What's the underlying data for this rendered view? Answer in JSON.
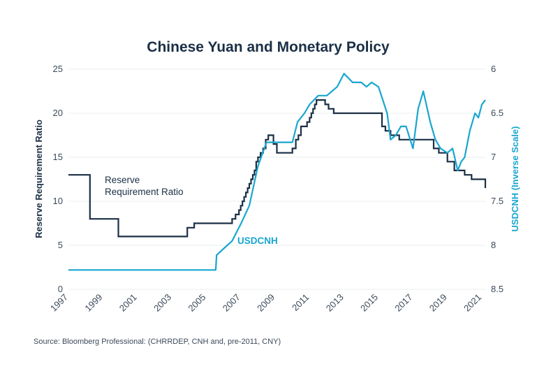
{
  "colors": {
    "rrr": "#1b2f45",
    "usdcnh": "#19a6cf",
    "grid": "#e9ecef",
    "text": "#3b4a5a"
  },
  "chart_data": {
    "type": "line",
    "title": "Chinese Yuan and Monetary Policy",
    "xlabel": "",
    "ylabel": "Reserve Requirement Ratio",
    "ylabel_right": "USDCNH (Inverse Scale)",
    "xlim": [
      1997,
      2021.2
    ],
    "ylim": [
      0,
      25
    ],
    "ylim_right": [
      8.5,
      6
    ],
    "right_axis_inverted": true,
    "grid": true,
    "x_ticks": [
      "1997",
      "1999",
      "2001",
      "2003",
      "2005",
      "2007",
      "2009",
      "2011",
      "2013",
      "2015",
      "2017",
      "2019",
      "2021"
    ],
    "y_ticks": [
      "0",
      "5",
      "10",
      "15",
      "20",
      "25"
    ],
    "y_ticks_right": [
      "6",
      "6.5",
      "7",
      "7.5",
      "8",
      "8.5"
    ],
    "annotations": {
      "rrr_line1": "Reserve",
      "rrr_line2": "Requirement Ratio",
      "usdcnh": "USDCNH"
    },
    "source": "Source: Bloomberg Professional: (CHRRDEP, CNH and, pre-2011, CNY)",
    "series": [
      {
        "name": "Reserve Requirement Ratio",
        "axis": "left",
        "step": true,
        "x": [
          1997.0,
          1998.25,
          1999.9,
          2003.9,
          2004.3,
          2006.5,
          2006.7,
          2006.9,
          2007.0,
          2007.1,
          2007.2,
          2007.3,
          2007.4,
          2007.5,
          2007.6,
          2007.7,
          2007.8,
          2007.9,
          2008.0,
          2008.15,
          2008.3,
          2008.45,
          2008.6,
          2008.75,
          2008.9,
          2009.1,
          2009.3,
          2010.0,
          2010.2,
          2010.35,
          2010.5,
          2010.85,
          2011.0,
          2011.1,
          2011.2,
          2011.3,
          2011.4,
          2011.5,
          2011.9,
          2012.1,
          2012.4,
          2015.2,
          2015.4,
          2015.7,
          2016.2,
          2018.2,
          2018.5,
          2019.0,
          2019.4,
          2020.0,
          2020.4,
          2021.2
        ],
        "y": [
          13,
          8,
          6,
          7,
          7.5,
          8,
          8.5,
          9,
          9.5,
          10,
          10.5,
          11,
          11.5,
          12,
          12.5,
          13,
          13.5,
          14.5,
          15,
          15.5,
          16,
          17,
          17.5,
          17.5,
          16.5,
          15.5,
          15.5,
          16,
          17,
          17.5,
          18.5,
          19,
          19.5,
          20,
          20.5,
          21,
          21.5,
          21.5,
          21,
          20.5,
          20,
          18.5,
          18,
          17.5,
          17,
          16,
          15.5,
          14.5,
          13.5,
          13,
          12.5,
          11.5
        ]
      },
      {
        "name": "USDCNH",
        "axis": "right",
        "step": false,
        "x": [
          1997.0,
          1998.0,
          1999.0,
          2000.0,
          2001.0,
          2002.0,
          2003.0,
          2004.0,
          2005.0,
          2005.55,
          2005.6,
          2006.0,
          2006.5,
          2007.0,
          2007.5,
          2008.0,
          2008.5,
          2009.0,
          2009.5,
          2010.0,
          2010.3,
          2010.5,
          2010.7,
          2011.0,
          2011.5,
          2012.0,
          2012.3,
          2012.6,
          2013.0,
          2013.5,
          2014.0,
          2014.3,
          2014.6,
          2015.0,
          2015.5,
          2015.7,
          2016.0,
          2016.3,
          2016.6,
          2017.0,
          2017.3,
          2017.6,
          2018.0,
          2018.3,
          2018.6,
          2019.0,
          2019.3,
          2019.6,
          2019.8,
          2020.0,
          2020.3,
          2020.6,
          2020.8,
          2021.0,
          2021.2
        ],
        "y": [
          8.28,
          8.28,
          8.28,
          8.28,
          8.28,
          8.28,
          8.28,
          8.28,
          8.28,
          8.28,
          8.11,
          8.04,
          7.95,
          7.76,
          7.55,
          7.1,
          6.83,
          6.83,
          6.83,
          6.83,
          6.6,
          6.55,
          6.5,
          6.4,
          6.3,
          6.3,
          6.25,
          6.2,
          6.05,
          6.15,
          6.15,
          6.2,
          6.15,
          6.2,
          6.5,
          6.8,
          6.75,
          6.65,
          6.65,
          6.9,
          6.45,
          6.25,
          6.6,
          6.8,
          6.9,
          6.95,
          6.9,
          7.15,
          7.05,
          7.0,
          6.7,
          6.5,
          6.55,
          6.4,
          6.35
        ]
      }
    ]
  }
}
